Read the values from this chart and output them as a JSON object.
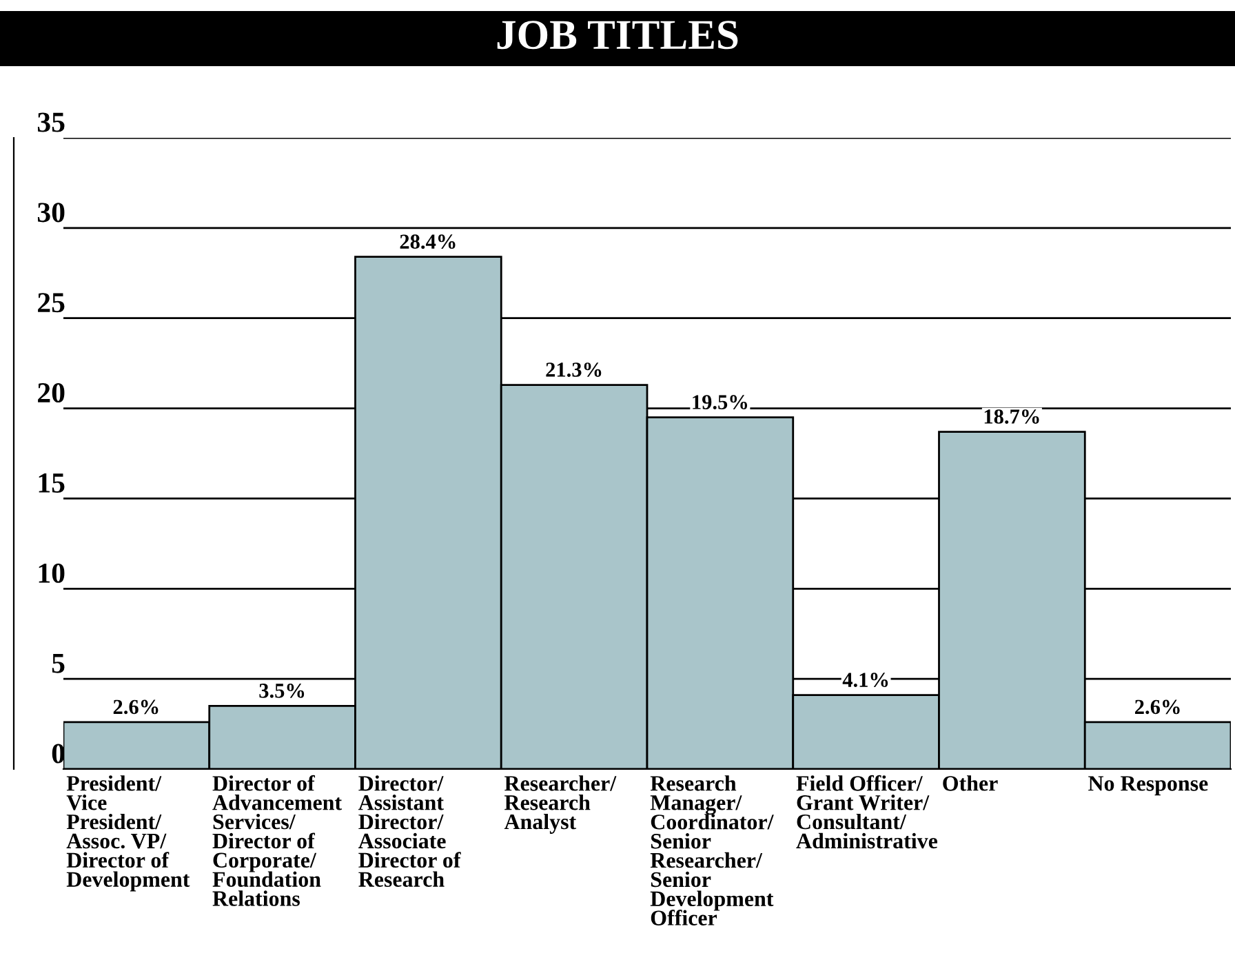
{
  "chart_data": {
    "type": "bar",
    "title": "JOB TITLES",
    "categories": [
      "President/\nVice\nPresident/\nAssoc. VP/\nDirector of\nDevelopment",
      "Director of\nAdvancement\nServices/\nDirector of\nCorporate/\nFoundation\nRelations",
      "Director/\nAssistant\nDirector/\nAssociate\nDirector of\nResearch",
      "Researcher/\nResearch\nAnalyst",
      "Research\nManager/\nCoordinator/\nSenior\nResearcher/\nSenior\nDevelopment\nOfficer",
      "Field Officer/\nGrant Writer/\nConsultant/\nAdministrative",
      "Other",
      "No Response"
    ],
    "values": [
      2.6,
      3.5,
      28.4,
      21.3,
      19.5,
      4.1,
      18.7,
      2.6
    ],
    "value_labels": [
      "2.6%",
      "3.5%",
      "28.4%",
      "21.3%",
      "19.5%",
      "4.1%",
      "18.7%",
      "2.6%"
    ],
    "color": "#a9c5ca",
    "ylim": [
      0,
      35
    ],
    "yticks": [
      0,
      5,
      10,
      15,
      20,
      25,
      30,
      35
    ],
    "grid": "y"
  }
}
